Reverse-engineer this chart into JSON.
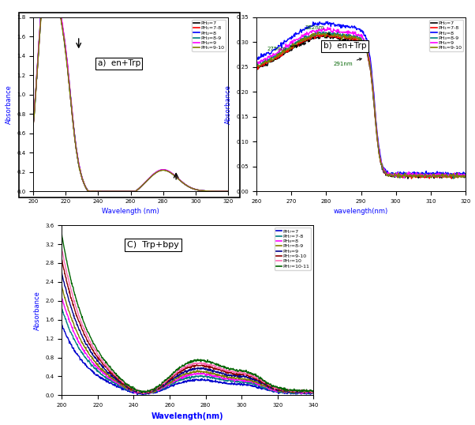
{
  "panel_a": {
    "title": "a)  en+Trp",
    "xlabel": "Wavelength (nm)",
    "ylabel": "Absorbance",
    "xlim": [
      200,
      320
    ],
    "ylim": [
      0.0,
      1.8
    ],
    "yticks": [
      0.0,
      0.2,
      0.4,
      0.6,
      0.8,
      1.0,
      1.2,
      1.4,
      1.6,
      1.8
    ],
    "xticks": [
      200,
      220,
      240,
      260,
      280,
      300,
      320
    ],
    "legend_labels": [
      "PH₀=7",
      "PH₁=7-8",
      "PH₂=8",
      "PH₃=8-9",
      "PH₄=9",
      "PH₅=9-10"
    ],
    "legend_colors": [
      "#000000",
      "#ff0000",
      "#0000ff",
      "#008080",
      "#ff00ff",
      "#808000"
    ]
  },
  "panel_b": {
    "title": "b)  en+Trp",
    "xlabel": "wavelength(nm)",
    "ylabel": "Absorbance",
    "xlim": [
      260,
      320
    ],
    "ylim": [
      0.0,
      0.35
    ],
    "yticks": [
      0.0,
      0.05,
      0.1,
      0.15,
      0.2,
      0.25,
      0.3,
      0.35
    ],
    "xticks": [
      260,
      270,
      280,
      290,
      300,
      310,
      320
    ],
    "legend_labels": [
      "PH₀=7",
      "PH₁=7-8",
      "PH₂=8",
      "PH₃=8-9",
      "PH₄=9",
      "PH₅=9-10"
    ],
    "legend_colors": [
      "#000000",
      "#ff0000",
      "#0000ff",
      "#008080",
      "#ff00ff",
      "#808000"
    ]
  },
  "panel_c": {
    "title": "C)  Trp+bpy",
    "xlabel": "Wavelength(nm)",
    "ylabel": "Absorbance",
    "xlim": [
      200,
      340
    ],
    "ylim": [
      0.0,
      3.6
    ],
    "yticks": [
      0.0,
      0.4,
      0.8,
      1.2,
      1.6,
      2.0,
      2.4,
      2.8,
      3.2,
      3.6
    ],
    "xticks": [
      200,
      220,
      240,
      260,
      280,
      300,
      320,
      340
    ],
    "legend_labels": [
      "PH₇=7",
      "PH₇=7-8",
      "PH₈=8",
      "PH₇=8-9",
      "PH₉=9",
      "PH₇=9-10",
      "PH₇=10",
      "PH₇=10-11"
    ],
    "legend_colors": [
      "#0000cd",
      "#008080",
      "#ff00ff",
      "#808000",
      "#00008b",
      "#8b0000",
      "#ff69b4",
      "#006400"
    ]
  }
}
